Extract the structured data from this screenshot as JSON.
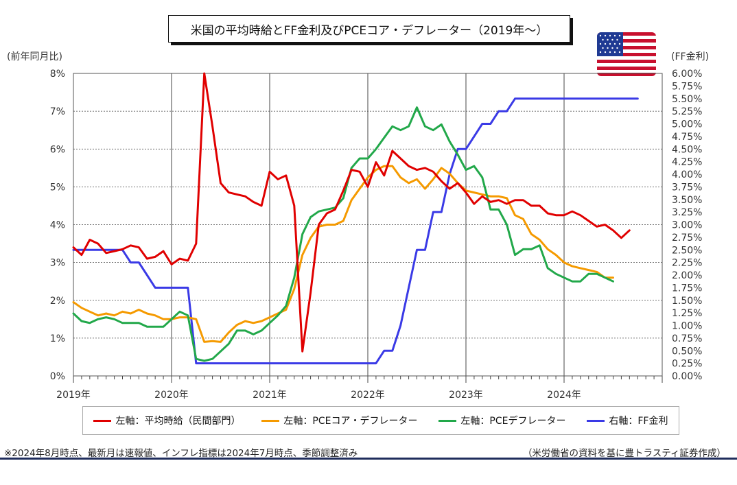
{
  "title": "米国の平均時給とFF金利及びPCEコア・デフレーター（2019年～）",
  "left_axis_unit": "(前年同月比)",
  "right_axis_unit": "(FF金利)",
  "flag_icon": "us-flag-icon",
  "legend": [
    {
      "label": "左軸：平均時給（民間部門）",
      "color": "#e00000"
    },
    {
      "label": "左軸：PCEコア・デフレーター",
      "color": "#f59a00"
    },
    {
      "label": "左軸：PCEデフレーター",
      "color": "#22a84a"
    },
    {
      "label": "右軸：FF金利",
      "color": "#3a3ae6"
    }
  ],
  "footnote_left": "※2024年8月時点、最新月は速報値、インフレ指標は2024年7月時点、季節調整済み",
  "footnote_right": "（米労働省の資料を基に豊トラスティ証券作成）",
  "chart_data": {
    "type": "line",
    "title": "米国の平均時給とFF金利及びPCEコア・デフレーター（2019年～）",
    "x_labels": [
      "2019年",
      "2020年",
      "2021年",
      "2022年",
      "2023年",
      "2024年"
    ],
    "x_start": "2019-01",
    "left_axis": {
      "ylim": [
        0,
        8
      ],
      "ticks": [
        "0%",
        "1%",
        "2%",
        "3%",
        "4%",
        "5%",
        "6%",
        "7%",
        "8%"
      ],
      "unit": "%"
    },
    "right_axis": {
      "ylim": [
        0,
        6
      ],
      "ticks": [
        "0.00%",
        "0.25%",
        "0.50%",
        "0.75%",
        "1.00%",
        "1.25%",
        "1.50%",
        "1.75%",
        "2.00%",
        "2.25%",
        "2.50%",
        "2.75%",
        "3.00%",
        "3.25%",
        "3.50%",
        "3.75%",
        "4.00%",
        "4.25%",
        "4.50%",
        "4.75%",
        "5.00%",
        "5.25%",
        "5.50%",
        "5.75%",
        "6.00%"
      ],
      "unit": "%"
    },
    "grid": true,
    "legend_position": "bottom",
    "series": [
      {
        "name": "左軸：平均時給（民間部門）",
        "axis": "left",
        "color": "#e00000",
        "values": [
          3.4,
          3.2,
          3.6,
          3.5,
          3.25,
          3.3,
          3.35,
          3.45,
          3.4,
          3.1,
          3.15,
          3.3,
          2.95,
          3.1,
          3.05,
          3.5,
          8.0,
          6.6,
          5.1,
          4.85,
          4.8,
          4.75,
          4.6,
          4.5,
          5.4,
          5.2,
          5.3,
          4.5,
          0.65,
          2.2,
          4.0,
          4.3,
          4.4,
          4.9,
          5.45,
          5.4,
          5.0,
          5.65,
          5.3,
          5.95,
          5.75,
          5.55,
          5.45,
          5.5,
          5.4,
          5.15,
          4.95,
          5.1,
          4.85,
          4.55,
          4.75,
          4.6,
          4.65,
          4.55,
          4.65,
          4.65,
          4.5,
          4.5,
          4.3,
          4.25,
          4.25,
          4.35,
          4.25,
          4.1,
          3.95,
          4.0,
          3.85,
          3.65,
          3.85
        ]
      },
      {
        "name": "左軸：PCEコア・デフレーター",
        "axis": "left",
        "color": "#f59a00",
        "values": [
          1.95,
          1.8,
          1.7,
          1.6,
          1.65,
          1.6,
          1.7,
          1.65,
          1.75,
          1.65,
          1.6,
          1.5,
          1.5,
          1.55,
          1.55,
          1.5,
          0.9,
          0.92,
          0.9,
          1.15,
          1.35,
          1.45,
          1.4,
          1.45,
          1.55,
          1.65,
          1.75,
          2.3,
          3.2,
          3.65,
          3.95,
          4.0,
          4.0,
          4.1,
          4.65,
          4.95,
          5.25,
          5.45,
          5.55,
          5.55,
          5.25,
          5.1,
          5.2,
          4.95,
          5.2,
          5.5,
          5.35,
          5.1,
          4.9,
          4.85,
          4.8,
          4.75,
          4.75,
          4.7,
          4.25,
          4.15,
          3.75,
          3.6,
          3.35,
          3.2,
          3.0,
          2.9,
          2.85,
          2.8,
          2.75,
          2.6,
          2.6
        ]
      },
      {
        "name": "左軸：PCEデフレーター",
        "axis": "left",
        "color": "#22a84a",
        "values": [
          1.65,
          1.45,
          1.4,
          1.5,
          1.55,
          1.5,
          1.4,
          1.4,
          1.4,
          1.3,
          1.3,
          1.3,
          1.5,
          1.7,
          1.6,
          0.45,
          0.4,
          0.45,
          0.65,
          0.85,
          1.2,
          1.2,
          1.1,
          1.2,
          1.4,
          1.6,
          1.85,
          2.6,
          3.75,
          4.2,
          4.35,
          4.4,
          4.45,
          4.7,
          5.5,
          5.75,
          5.75,
          6.0,
          6.3,
          6.6,
          6.5,
          6.6,
          7.1,
          6.6,
          6.5,
          6.65,
          6.2,
          5.85,
          5.45,
          5.55,
          5.25,
          4.4,
          4.4,
          4.0,
          3.2,
          3.35,
          3.35,
          3.45,
          2.85,
          2.7,
          2.6,
          2.5,
          2.5,
          2.7,
          2.7,
          2.6,
          2.5
        ]
      },
      {
        "name": "右軸：FF金利",
        "axis": "right",
        "color": "#3a3ae6",
        "values": [
          2.5,
          2.5,
          2.5,
          2.5,
          2.5,
          2.5,
          2.5,
          2.25,
          2.25,
          2.0,
          1.75,
          1.75,
          1.75,
          1.75,
          1.75,
          0.25,
          0.25,
          0.25,
          0.25,
          0.25,
          0.25,
          0.25,
          0.25,
          0.25,
          0.25,
          0.25,
          0.25,
          0.25,
          0.25,
          0.25,
          0.25,
          0.25,
          0.25,
          0.25,
          0.25,
          0.25,
          0.25,
          0.25,
          0.5,
          0.5,
          1.0,
          1.75,
          2.5,
          2.5,
          3.25,
          3.25,
          4.0,
          4.5,
          4.5,
          4.75,
          5.0,
          5.0,
          5.25,
          5.25,
          5.5,
          5.5,
          5.5,
          5.5,
          5.5,
          5.5,
          5.5,
          5.5,
          5.5,
          5.5,
          5.5,
          5.5,
          5.5,
          5.5,
          5.5,
          5.5
        ]
      }
    ]
  }
}
